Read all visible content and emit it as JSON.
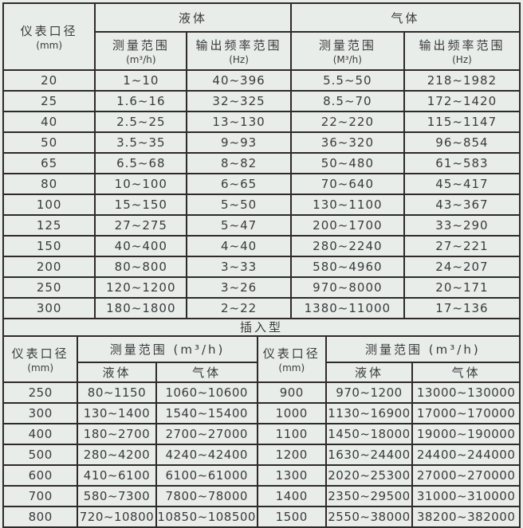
{
  "colors": {
    "background": "#e9edea",
    "line": "#2e2a27",
    "text": "#3a3a3a"
  },
  "main_table": {
    "header": {
      "diameter_label": "仪表口径",
      "diameter_unit": "(mm)",
      "liquid_label": "液体",
      "gas_label": "气体",
      "measure_range_label": "测量范围",
      "liquid_measure_unit": "(m³/h)",
      "gas_measure_unit": "(M³/h)",
      "freq_range_label": "输出频率范围",
      "freq_unit": "(Hz)"
    },
    "rows": [
      {
        "dn": "20",
        "liquid_range": "1~10",
        "liquid_freq": "40~396",
        "gas_range": "5.5~50",
        "gas_freq": "218~1982"
      },
      {
        "dn": "25",
        "liquid_range": "1.6~16",
        "liquid_freq": "32~325",
        "gas_range": "8.5~70",
        "gas_freq": "172~1420"
      },
      {
        "dn": "40",
        "liquid_range": "2.5~25",
        "liquid_freq": "13~130",
        "gas_range": "22~220",
        "gas_freq": "115~1147"
      },
      {
        "dn": "50",
        "liquid_range": "3.5~35",
        "liquid_freq": "9~93",
        "gas_range": "36~320",
        "gas_freq": "96~854"
      },
      {
        "dn": "65",
        "liquid_range": "6.5~68",
        "liquid_freq": "8~82",
        "gas_range": "50~480",
        "gas_freq": "61~583"
      },
      {
        "dn": "80",
        "liquid_range": "10~100",
        "liquid_freq": "6~65",
        "gas_range": "70~640",
        "gas_freq": "45~417"
      },
      {
        "dn": "100",
        "liquid_range": "15~150",
        "liquid_freq": "5~50",
        "gas_range": "130~1100",
        "gas_freq": "43~367"
      },
      {
        "dn": "125",
        "liquid_range": "27~275",
        "liquid_freq": "5~47",
        "gas_range": "200~1700",
        "gas_freq": "33~290"
      },
      {
        "dn": "150",
        "liquid_range": "40~400",
        "liquid_freq": "4~40",
        "gas_range": "280~2240",
        "gas_freq": "27~221"
      },
      {
        "dn": "200",
        "liquid_range": "80~800",
        "liquid_freq": "3~33",
        "gas_range": "580~4960",
        "gas_freq": "24~207"
      },
      {
        "dn": "250",
        "liquid_range": "120~1200",
        "liquid_freq": "3~26",
        "gas_range": "970~8000",
        "gas_freq": "20~171"
      },
      {
        "dn": "300",
        "liquid_range": "180~1800",
        "liquid_freq": "2~22",
        "gas_range": "1380~11000",
        "gas_freq": "17~136"
      }
    ]
  },
  "insertion": {
    "title": "插入型",
    "header": {
      "diameter_label": "仪表口径",
      "diameter_unit": "(mm)",
      "measure_range_label": "测量范围 (m³/h)",
      "liquid_label": "液体",
      "gas_label": "气体"
    },
    "left_rows": [
      {
        "dn": "250",
        "liquid": "80~1150",
        "gas": "1060~10600"
      },
      {
        "dn": "300",
        "liquid": "130~1400",
        "gas": "1540~15400"
      },
      {
        "dn": "400",
        "liquid": "180~2700",
        "gas": "2700~27000"
      },
      {
        "dn": "500",
        "liquid": "280~4200",
        "gas": "4240~42400"
      },
      {
        "dn": "600",
        "liquid": "410~6100",
        "gas": "6100~61000"
      },
      {
        "dn": "700",
        "liquid": "580~7300",
        "gas": "7800~78000"
      },
      {
        "dn": "800",
        "liquid": "720~10800",
        "gas": "10850~108500"
      }
    ],
    "right_rows": [
      {
        "dn": "900",
        "liquid": "970~1200",
        "gas": "13000~130000"
      },
      {
        "dn": "1000",
        "liquid": "1130~16900",
        "gas": "17000~170000"
      },
      {
        "dn": "1100",
        "liquid": "1450~18000",
        "gas": "19000~190000"
      },
      {
        "dn": "1200",
        "liquid": "1630~24400",
        "gas": "24400~244000"
      },
      {
        "dn": "1300",
        "liquid": "2020~25300",
        "gas": "27000~270000"
      },
      {
        "dn": "1400",
        "liquid": "2350~29500",
        "gas": "31000~310000"
      },
      {
        "dn": "1500",
        "liquid": "2550~38000",
        "gas": "38200~382000"
      }
    ]
  }
}
